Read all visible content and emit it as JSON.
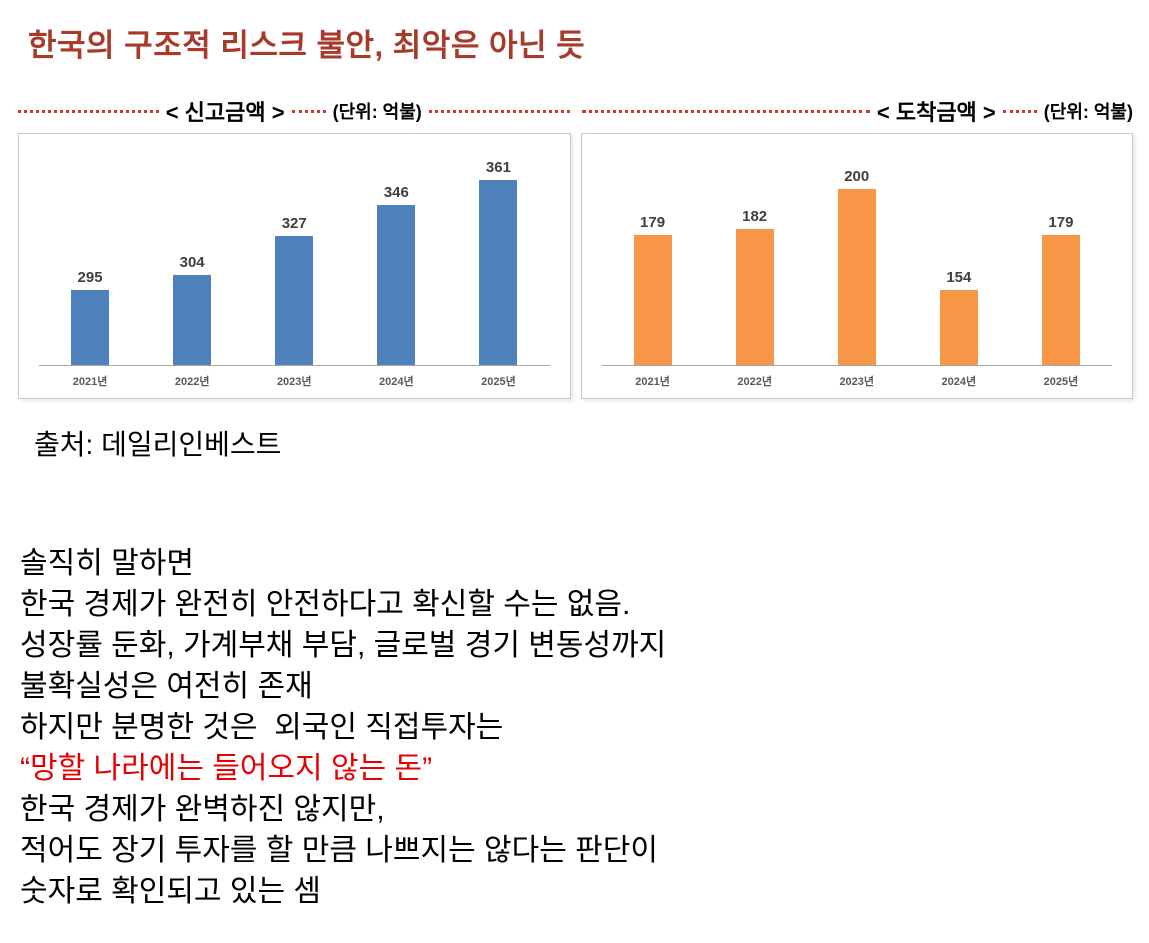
{
  "title": "한국의 구조적 리스크 불안, 최악은 아닌 듯",
  "source": "출처: 데일리인베스트",
  "colors": {
    "title": "#a63a2b",
    "accent_red": "#d43a22",
    "highlight_red": "#e60000",
    "blue_bar": "#4f81bd",
    "orange_bar": "#f79646"
  },
  "chart_data": [
    {
      "type": "bar",
      "title": "<  신고금액  >",
      "unit_label": "(단위: 억불)",
      "categories": [
        "2021년",
        "2022년",
        "2023년",
        "2024년",
        "2025년"
      ],
      "values": [
        295,
        304,
        327,
        346,
        361
      ],
      "bar_color": "#4f81bd",
      "ylim": [
        250,
        375
      ],
      "legend": "none",
      "grid": "off"
    },
    {
      "type": "bar",
      "title": "<  도착금액  >",
      "unit_label": "(단위: 억불)",
      "categories": [
        "2021년",
        "2022년",
        "2023년",
        "2024년",
        "2025년"
      ],
      "values": [
        179,
        182,
        200,
        154,
        179
      ],
      "bar_color": "#f79646",
      "ylim": [
        120,
        215
      ],
      "legend": "none",
      "grid": "off"
    }
  ],
  "body": {
    "lines": [
      {
        "text": "솔직히 말하면",
        "red": false
      },
      {
        "text": "한국 경제가 완전히 안전하다고 확신할 수는 없음.",
        "red": false
      },
      {
        "text": "성장률 둔화, 가계부채 부담, 글로벌 경기 변동성까지",
        "red": false
      },
      {
        "text": "불확실성은 여전히 존재",
        "red": false
      },
      {
        "text": "하지만 분명한 것은  외국인 직접투자는",
        "red": false
      },
      {
        "text": "“망할 나라에는 들어오지 않는 돈”",
        "red": true
      },
      {
        "text": "한국 경제가 완벽하진 않지만,",
        "red": false
      },
      {
        "text": "적어도 장기 투자를 할 만큼 나쁘지는 않다는 판단이",
        "red": false
      },
      {
        "text": "숫자로 확인되고 있는 셈",
        "red": false
      }
    ]
  }
}
